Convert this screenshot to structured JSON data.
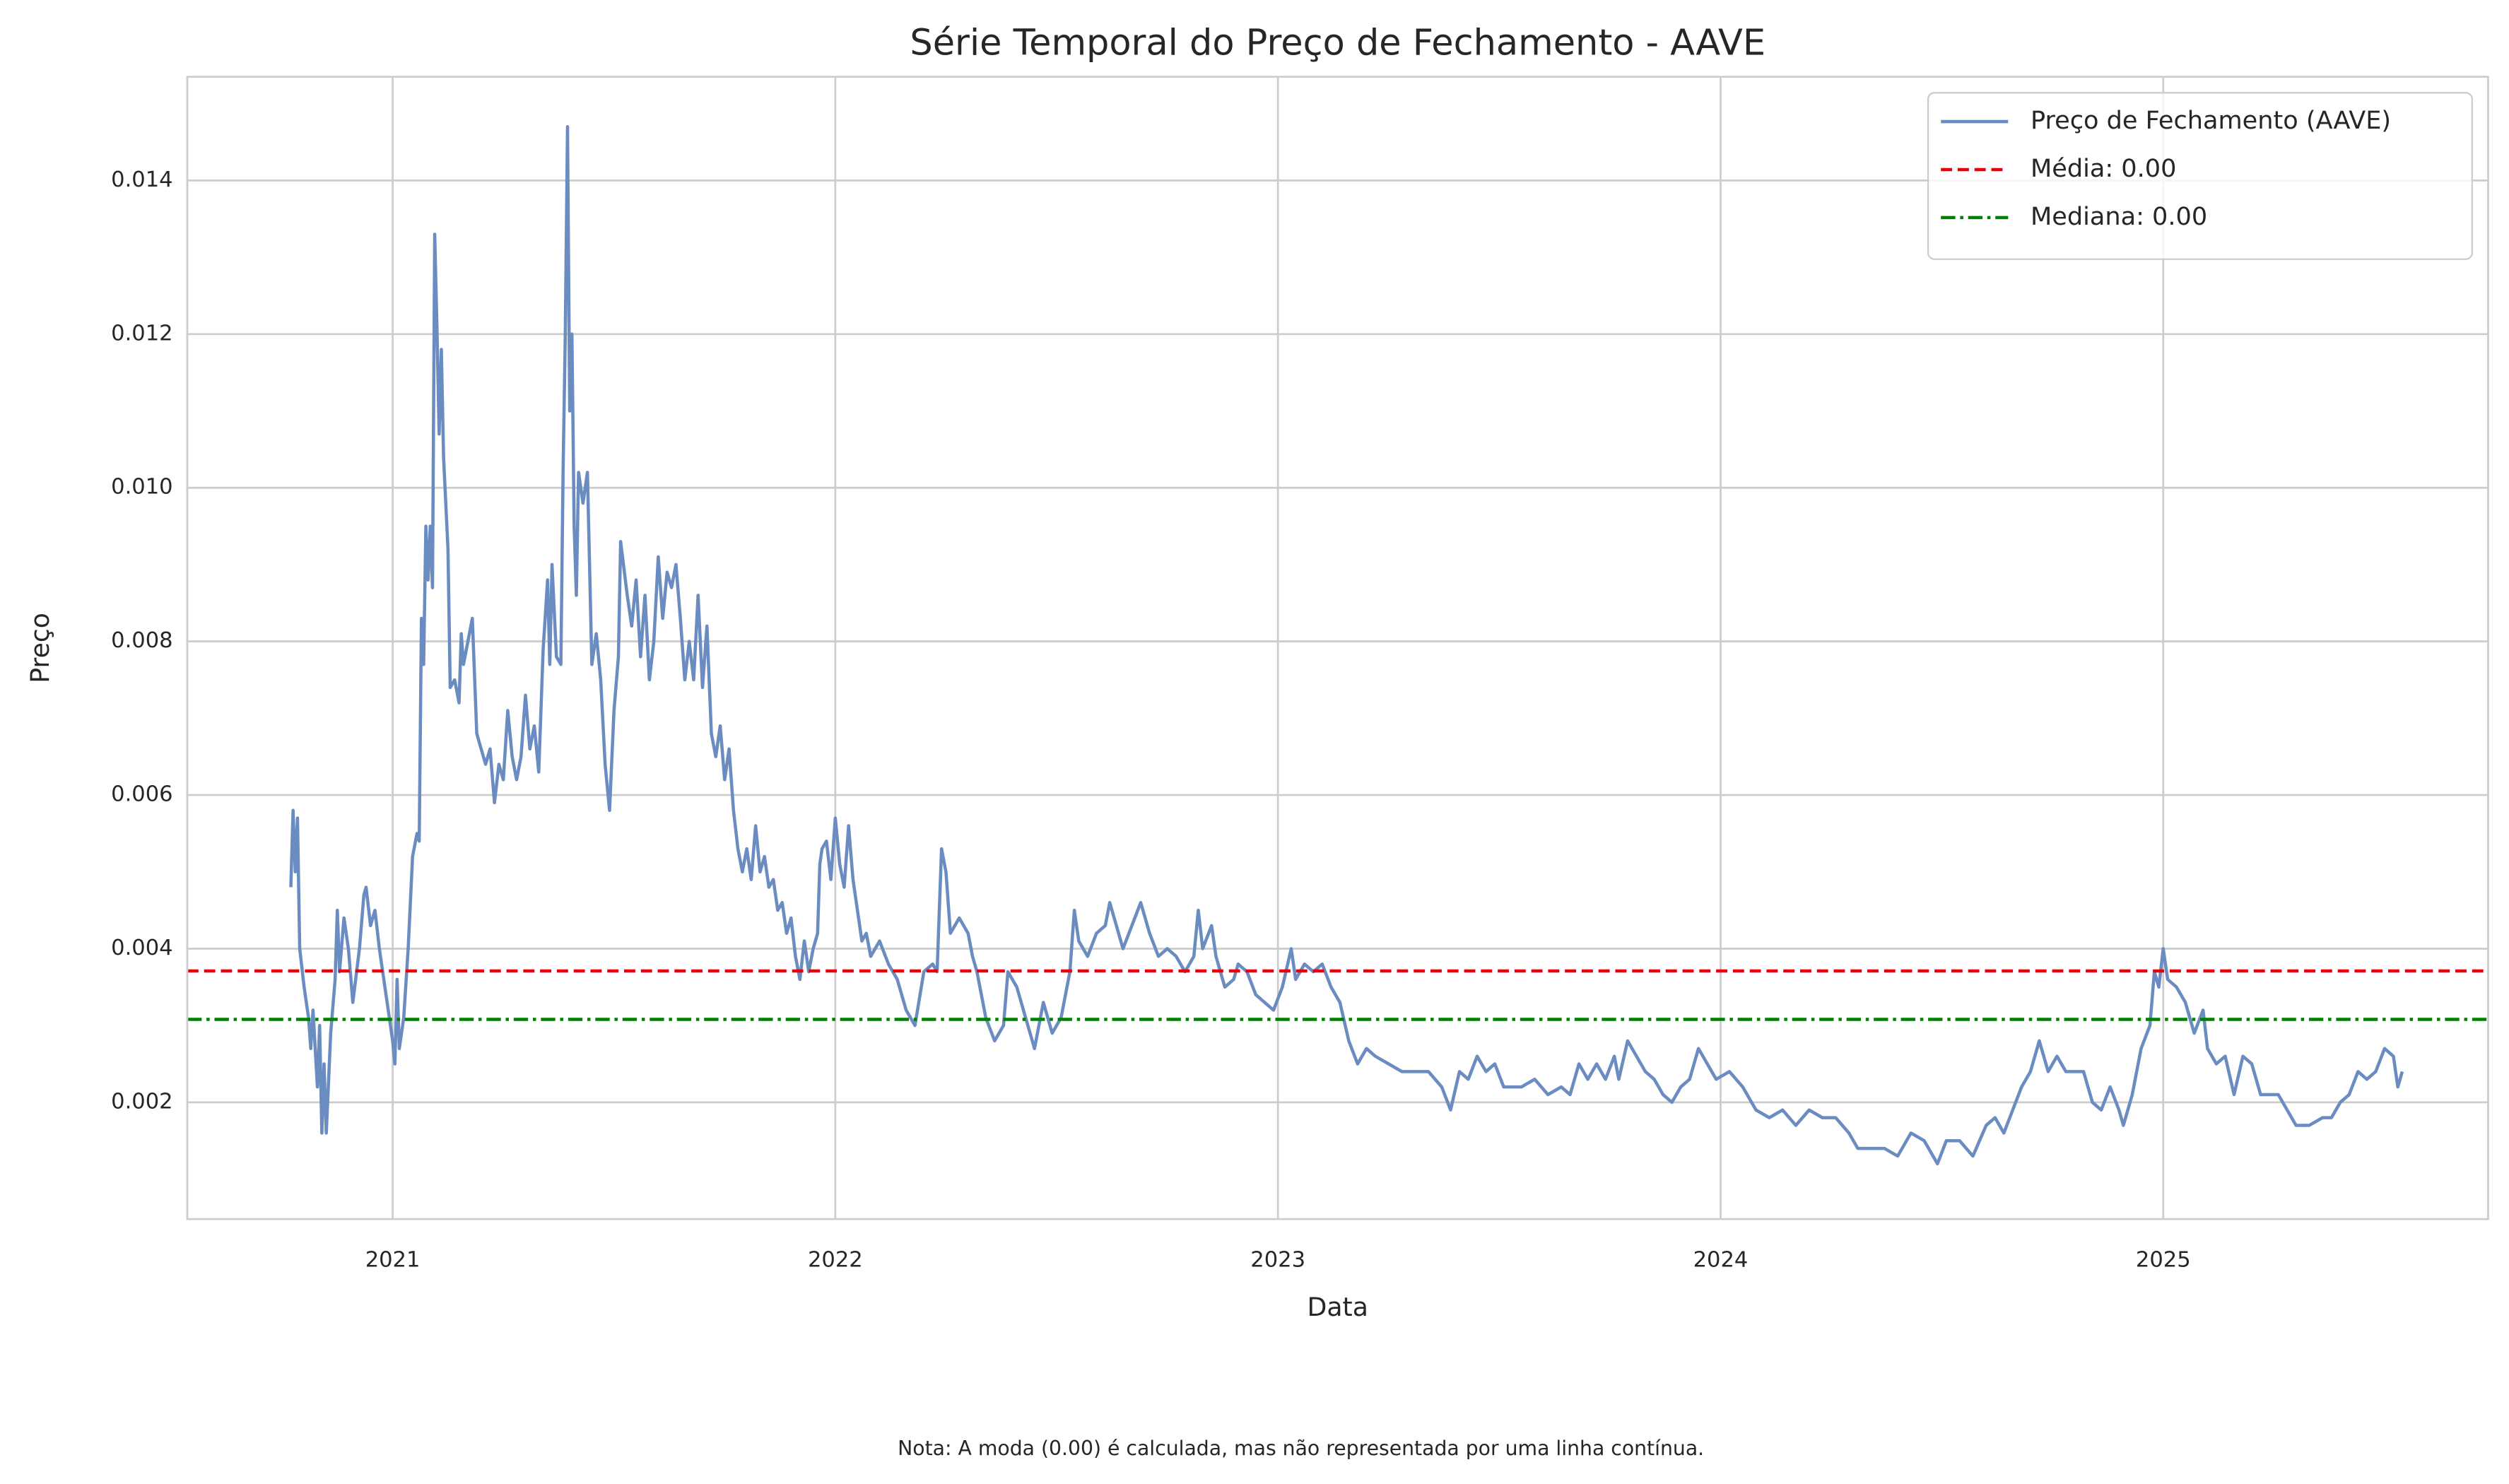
{
  "chart_data": {
    "type": "line",
    "title": "Série Temporal do Preço de Fechamento - AAVE",
    "xlabel": "Data",
    "ylabel": "Preço",
    "note": "Nota: A moda (0.00) é calculada, mas não representada por uma linha contínua.",
    "xlim": [
      2020.536,
      2025.734
    ],
    "xticks": [
      2021,
      2022,
      2023,
      2024,
      2025
    ],
    "ylim": [
      0.00048,
      0.01535
    ],
    "yticks": [
      0.002,
      0.004,
      0.006,
      0.008,
      {
        "value": 0.01,
        "label": "0.010"
      },
      0.012,
      0.014
    ],
    "grid": true,
    "legend": "upper right",
    "series": [
      {
        "name": "Preço de Fechamento (AAVE)",
        "color": "#6a8cc1",
        "x": [
          2020.77,
          2020.775,
          2020.78,
          2020.785,
          2020.79,
          2020.8,
          2020.81,
          2020.815,
          2020.82,
          2020.83,
          2020.835,
          2020.84,
          2020.845,
          2020.85,
          2020.86,
          2020.87,
          2020.875,
          2020.88,
          2020.89,
          2020.9,
          2020.91,
          2020.925,
          2020.935,
          2020.94,
          2020.95,
          2020.96,
          2020.97,
          2020.98,
          2020.99,
          2021.0,
          2021.005,
          2021.01,
          2021.015,
          2021.025,
          2021.035,
          2021.045,
          2021.055,
          2021.06,
          2021.065,
          2021.07,
          2021.075,
          2021.08,
          2021.085,
          2021.09,
          2021.095,
          2021.1,
          2021.105,
          2021.11,
          2021.115,
          2021.125,
          2021.13,
          2021.14,
          2021.15,
          2021.155,
          2021.16,
          2021.18,
          2021.19,
          2021.2,
          2021.21,
          2021.22,
          2021.23,
          2021.24,
          2021.25,
          2021.26,
          2021.27,
          2021.28,
          2021.29,
          2021.3,
          2021.31,
          2021.32,
          2021.33,
          2021.34,
          2021.35,
          2021.355,
          2021.36,
          2021.37,
          2021.38,
          2021.385,
          2021.39,
          2021.395,
          2021.4,
          2021.405,
          2021.41,
          2021.415,
          2021.42,
          2021.43,
          2021.44,
          2021.45,
          2021.46,
          2021.47,
          2021.48,
          2021.49,
          2021.5,
          2021.51,
          2021.515,
          2021.53,
          2021.54,
          2021.55,
          2021.56,
          2021.57,
          2021.58,
          2021.59,
          2021.6,
          2021.61,
          2021.62,
          2021.63,
          2021.64,
          2021.65,
          2021.66,
          2021.67,
          2021.68,
          2021.69,
          2021.7,
          2021.71,
          2021.72,
          2021.73,
          2021.74,
          2021.75,
          2021.76,
          2021.77,
          2021.78,
          2021.79,
          2021.8,
          2021.81,
          2021.82,
          2021.83,
          2021.84,
          2021.85,
          2021.86,
          2021.87,
          2021.88,
          2021.89,
          2021.9,
          2021.91,
          2021.92,
          2021.93,
          2021.94,
          2021.95,
          2021.96,
          2021.965,
          2021.97,
          2021.98,
          2021.99,
          2022.0,
          2022.01,
          2022.02,
          2022.03,
          2022.04,
          2022.05,
          2022.06,
          2022.07,
          2022.08,
          2022.1,
          2022.12,
          2022.14,
          2022.16,
          2022.18,
          2022.2,
          2022.22,
          2022.23,
          2022.24,
          2022.25,
          2022.26,
          2022.28,
          2022.3,
          2022.31,
          2022.32,
          2022.34,
          2022.36,
          2022.38,
          2022.39,
          2022.41,
          2022.43,
          2022.45,
          2022.47,
          2022.49,
          2022.51,
          2022.53,
          2022.54,
          2022.55,
          2022.57,
          2022.59,
          2022.61,
          2022.62,
          2022.64,
          2022.65,
          2022.67,
          2022.69,
          2022.71,
          2022.73,
          2022.75,
          2022.77,
          2022.79,
          2022.81,
          2022.82,
          2022.83,
          2022.85,
          2022.86,
          2022.88,
          2022.9,
          2022.91,
          2022.93,
          2022.95,
          2022.97,
          2022.99,
          2023.01,
          2023.03,
          2023.04,
          2023.06,
          2023.08,
          2023.1,
          2023.12,
          2023.14,
          2023.16,
          2023.18,
          2023.2,
          2023.22,
          2023.25,
          2023.28,
          2023.31,
          2023.34,
          2023.37,
          2023.39,
          2023.41,
          2023.43,
          2023.45,
          2023.47,
          2023.49,
          2023.51,
          2023.55,
          2023.58,
          2023.61,
          2023.64,
          2023.66,
          2023.68,
          2023.7,
          2023.72,
          2023.74,
          2023.76,
          2023.77,
          2023.79,
          2023.81,
          2023.83,
          2023.85,
          2023.87,
          2023.89,
          2023.91,
          2023.93,
          2023.95,
          2023.97,
          2023.99,
          2024.02,
          2024.05,
          2024.08,
          2024.11,
          2024.14,
          2024.17,
          2024.2,
          2024.23,
          2024.26,
          2024.29,
          2024.31,
          2024.34,
          2024.37,
          2024.4,
          2024.43,
          2024.46,
          2024.49,
          2024.51,
          2024.54,
          2024.57,
          2024.6,
          2024.62,
          2024.64,
          2024.66,
          2024.68,
          2024.7,
          2024.72,
          2024.74,
          2024.76,
          2024.78,
          2024.82,
          2024.84,
          2024.86,
          2024.88,
          2024.9,
          2024.91,
          2024.93,
          2024.95,
          2024.97,
          2024.98,
          2024.99,
          2025.0,
          2025.01,
          2025.03,
          2025.05,
          2025.07,
          2025.09,
          2025.1,
          2025.12,
          2025.14,
          2025.16,
          2025.18,
          2025.2,
          2025.22,
          2025.26,
          2025.28,
          2025.3,
          2025.33,
          2025.36,
          2025.38,
          2025.4,
          2025.42,
          2025.44,
          2025.46,
          2025.48,
          2025.5,
          2025.52,
          2025.53,
          2025.54
        ],
        "values": [
          0.0048,
          0.0058,
          0.005,
          0.0057,
          0.004,
          0.0035,
          0.0031,
          0.0027,
          0.0032,
          0.0022,
          0.003,
          0.0016,
          0.0025,
          0.0016,
          0.0029,
          0.0036,
          0.0045,
          0.0037,
          0.0044,
          0.004,
          0.0033,
          0.004,
          0.0047,
          0.0048,
          0.0043,
          0.0045,
          0.004,
          0.0036,
          0.0032,
          0.0028,
          0.0025,
          0.0036,
          0.0027,
          0.0031,
          0.004,
          0.0052,
          0.0055,
          0.0054,
          0.0083,
          0.0077,
          0.0095,
          0.0088,
          0.0095,
          0.0087,
          0.0133,
          0.0121,
          0.0107,
          0.0118,
          0.0104,
          0.0092,
          0.0074,
          0.0075,
          0.0072,
          0.0081,
          0.0077,
          0.0083,
          0.0068,
          0.0066,
          0.0064,
          0.0066,
          0.0059,
          0.0064,
          0.0062,
          0.0071,
          0.0065,
          0.0062,
          0.0065,
          0.0073,
          0.0066,
          0.0069,
          0.0063,
          0.0079,
          0.0088,
          0.0077,
          0.009,
          0.0078,
          0.0077,
          0.0102,
          0.012,
          0.0147,
          0.011,
          0.012,
          0.0095,
          0.0086,
          0.0102,
          0.0098,
          0.0102,
          0.0077,
          0.0081,
          0.0075,
          0.0064,
          0.0058,
          0.0071,
          0.0078,
          0.0093,
          0.0086,
          0.0082,
          0.0088,
          0.0078,
          0.0086,
          0.0075,
          0.008,
          0.0091,
          0.0083,
          0.0089,
          0.0087,
          0.009,
          0.0083,
          0.0075,
          0.008,
          0.0075,
          0.0086,
          0.0074,
          0.0082,
          0.0068,
          0.0065,
          0.0069,
          0.0062,
          0.0066,
          0.0058,
          0.0053,
          0.005,
          0.0053,
          0.0049,
          0.0056,
          0.005,
          0.0052,
          0.0048,
          0.0049,
          0.0045,
          0.0046,
          0.0042,
          0.0044,
          0.0039,
          0.0036,
          0.0041,
          0.0037,
          0.004,
          0.0042,
          0.0051,
          0.0053,
          0.0054,
          0.0049,
          0.0057,
          0.0051,
          0.0048,
          0.0056,
          0.0049,
          0.0045,
          0.0041,
          0.0042,
          0.0039,
          0.0041,
          0.0038,
          0.0036,
          0.0032,
          0.003,
          0.0037,
          0.0038,
          0.0037,
          0.0053,
          0.005,
          0.0042,
          0.0044,
          0.0042,
          0.0039,
          0.0037,
          0.0031,
          0.0028,
          0.003,
          0.0037,
          0.0035,
          0.0031,
          0.0027,
          0.0033,
          0.0029,
          0.0031,
          0.0037,
          0.0045,
          0.0041,
          0.0039,
          0.0042,
          0.0043,
          0.0046,
          0.0042,
          0.004,
          0.0043,
          0.0046,
          0.0042,
          0.0039,
          0.004,
          0.0039,
          0.0037,
          0.0039,
          0.0045,
          0.004,
          0.0043,
          0.0039,
          0.0035,
          0.0036,
          0.0038,
          0.0037,
          0.0034,
          0.0033,
          0.0032,
          0.0035,
          0.004,
          0.0036,
          0.0038,
          0.0037,
          0.0038,
          0.0035,
          0.0033,
          0.0028,
          0.0025,
          0.0027,
          0.0026,
          0.0025,
          0.0024,
          0.0024,
          0.0024,
          0.0022,
          0.0019,
          0.0024,
          0.0023,
          0.0026,
          0.0024,
          0.0025,
          0.0022,
          0.0022,
          0.0023,
          0.0021,
          0.0022,
          0.0021,
          0.0025,
          0.0023,
          0.0025,
          0.0023,
          0.0026,
          0.0023,
          0.0028,
          0.0026,
          0.0024,
          0.0023,
          0.0021,
          0.002,
          0.0022,
          0.0023,
          0.0027,
          0.0025,
          0.0023,
          0.0024,
          0.0022,
          0.0019,
          0.0018,
          0.0019,
          0.0017,
          0.0019,
          0.0018,
          0.0018,
          0.0016,
          0.0014,
          0.0014,
          0.0014,
          0.0013,
          0.0016,
          0.0015,
          0.0012,
          0.0015,
          0.0015,
          0.0013,
          0.0017,
          0.0018,
          0.0016,
          0.0019,
          0.0022,
          0.0024,
          0.0028,
          0.0024,
          0.0026,
          0.0024,
          0.0024,
          0.002,
          0.0019,
          0.0022,
          0.0019,
          0.0017,
          0.0021,
          0.0027,
          0.003,
          0.0037,
          0.0035,
          0.004,
          0.0036,
          0.0035,
          0.0033,
          0.0029,
          0.0032,
          0.0027,
          0.0025,
          0.0026,
          0.0021,
          0.0026,
          0.0025,
          0.0021,
          0.0021,
          0.0019,
          0.0017,
          0.0017,
          0.0018,
          0.0018,
          0.002,
          0.0021,
          0.0024,
          0.0023,
          0.0024,
          0.0027,
          0.0026,
          0.0022,
          0.0024
        ]
      }
    ],
    "hlines": [
      {
        "name": "Média: 0.00",
        "value": 0.00371,
        "color": "#e8000b",
        "linestyle": "dashed"
      },
      {
        "name": "Mediana: 0.00",
        "value": 0.00308,
        "color": "#008000",
        "linestyle": "dashdot"
      }
    ]
  }
}
